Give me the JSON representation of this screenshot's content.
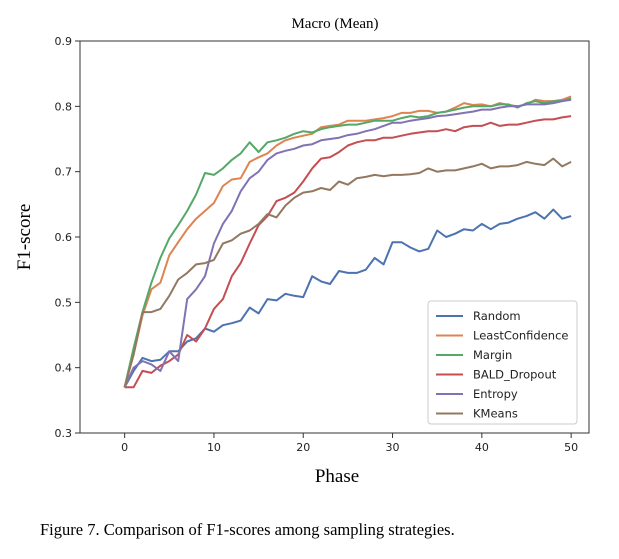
{
  "chart_data": {
    "type": "line",
    "title": "Macro (Mean)",
    "xlabel": "Phase",
    "ylabel": "F1-score",
    "xlim": [
      -5,
      52
    ],
    "ylim": [
      0.3,
      0.9
    ],
    "xticks": [
      0,
      10,
      20,
      30,
      40,
      50
    ],
    "yticks": [
      0.3,
      0.4,
      0.5,
      0.6,
      0.7,
      0.8,
      0.9
    ],
    "grid": false,
    "legend_position": "lower-right",
    "x": [
      0,
      1,
      2,
      3,
      4,
      5,
      6,
      7,
      8,
      9,
      10,
      11,
      12,
      13,
      14,
      15,
      16,
      17,
      18,
      19,
      20,
      21,
      22,
      23,
      24,
      25,
      26,
      27,
      28,
      29,
      30,
      31,
      32,
      33,
      34,
      35,
      36,
      37,
      38,
      39,
      40,
      41,
      42,
      43,
      44,
      45,
      46,
      47,
      48,
      49,
      50
    ],
    "series": [
      {
        "name": "Random",
        "color": "#4c72b0",
        "values": [
          0.37,
          0.395,
          0.415,
          0.41,
          0.412,
          0.425,
          0.425,
          0.44,
          0.445,
          0.46,
          0.455,
          0.465,
          0.468,
          0.472,
          0.492,
          0.483,
          0.505,
          0.503,
          0.513,
          0.51,
          0.508,
          0.54,
          0.532,
          0.528,
          0.548,
          0.545,
          0.545,
          0.55,
          0.568,
          0.558,
          0.592,
          0.592,
          0.584,
          0.578,
          0.582,
          0.61,
          0.6,
          0.605,
          0.612,
          0.61,
          0.62,
          0.612,
          0.62,
          0.622,
          0.628,
          0.632,
          0.638,
          0.628,
          0.642,
          0.628,
          0.632
        ]
      },
      {
        "name": "LeastConfidence",
        "color": "#dd8452",
        "values": [
          0.37,
          0.42,
          0.48,
          0.52,
          0.53,
          0.572,
          0.592,
          0.612,
          0.628,
          0.64,
          0.652,
          0.678,
          0.688,
          0.69,
          0.715,
          0.722,
          0.728,
          0.74,
          0.748,
          0.752,
          0.755,
          0.758,
          0.768,
          0.77,
          0.772,
          0.778,
          0.778,
          0.778,
          0.78,
          0.782,
          0.785,
          0.79,
          0.79,
          0.793,
          0.793,
          0.79,
          0.792,
          0.798,
          0.805,
          0.802,
          0.803,
          0.8,
          0.805,
          0.802,
          0.8,
          0.803,
          0.81,
          0.808,
          0.808,
          0.81,
          0.815
        ]
      },
      {
        "name": "Margin",
        "color": "#55a868",
        "values": [
          0.37,
          0.43,
          0.485,
          0.53,
          0.568,
          0.598,
          0.618,
          0.64,
          0.665,
          0.698,
          0.695,
          0.705,
          0.718,
          0.728,
          0.745,
          0.73,
          0.745,
          0.748,
          0.752,
          0.758,
          0.762,
          0.76,
          0.765,
          0.768,
          0.77,
          0.772,
          0.772,
          0.775,
          0.778,
          0.778,
          0.778,
          0.782,
          0.785,
          0.783,
          0.785,
          0.79,
          0.792,
          0.795,
          0.798,
          0.8,
          0.8,
          0.8,
          0.803,
          0.803,
          0.798,
          0.805,
          0.808,
          0.805,
          0.808,
          0.808,
          0.812
        ]
      },
      {
        "name": "BALD_Dropout",
        "color": "#c44e52",
        "values": [
          0.37,
          0.37,
          0.395,
          0.392,
          0.403,
          0.41,
          0.42,
          0.45,
          0.44,
          0.46,
          0.49,
          0.505,
          0.54,
          0.56,
          0.59,
          0.618,
          0.632,
          0.655,
          0.66,
          0.668,
          0.685,
          0.705,
          0.72,
          0.722,
          0.73,
          0.74,
          0.745,
          0.748,
          0.748,
          0.752,
          0.752,
          0.755,
          0.758,
          0.76,
          0.762,
          0.762,
          0.765,
          0.762,
          0.768,
          0.77,
          0.77,
          0.775,
          0.77,
          0.772,
          0.772,
          0.775,
          0.778,
          0.78,
          0.78,
          0.783,
          0.785
        ]
      },
      {
        "name": "Entropy",
        "color": "#8172b3",
        "values": [
          0.37,
          0.4,
          0.41,
          0.405,
          0.395,
          0.425,
          0.41,
          0.505,
          0.52,
          0.54,
          0.59,
          0.62,
          0.64,
          0.67,
          0.69,
          0.7,
          0.718,
          0.728,
          0.732,
          0.735,
          0.74,
          0.742,
          0.748,
          0.75,
          0.752,
          0.756,
          0.758,
          0.762,
          0.765,
          0.77,
          0.775,
          0.775,
          0.778,
          0.78,
          0.782,
          0.785,
          0.786,
          0.788,
          0.79,
          0.792,
          0.795,
          0.795,
          0.798,
          0.8,
          0.8,
          0.803,
          0.803,
          0.803,
          0.805,
          0.808,
          0.81
        ]
      },
      {
        "name": "KMeans",
        "color": "#937860",
        "values": [
          0.37,
          0.42,
          0.485,
          0.485,
          0.49,
          0.51,
          0.535,
          0.545,
          0.558,
          0.56,
          0.565,
          0.59,
          0.595,
          0.605,
          0.61,
          0.62,
          0.635,
          0.63,
          0.648,
          0.66,
          0.668,
          0.67,
          0.675,
          0.672,
          0.685,
          0.68,
          0.69,
          0.692,
          0.695,
          0.693,
          0.695,
          0.695,
          0.696,
          0.698,
          0.705,
          0.7,
          0.702,
          0.702,
          0.705,
          0.708,
          0.712,
          0.705,
          0.708,
          0.708,
          0.71,
          0.715,
          0.712,
          0.71,
          0.72,
          0.708,
          0.715
        ]
      }
    ]
  },
  "caption": "Figure 7. Comparison of F1-scores among sampling strategies."
}
